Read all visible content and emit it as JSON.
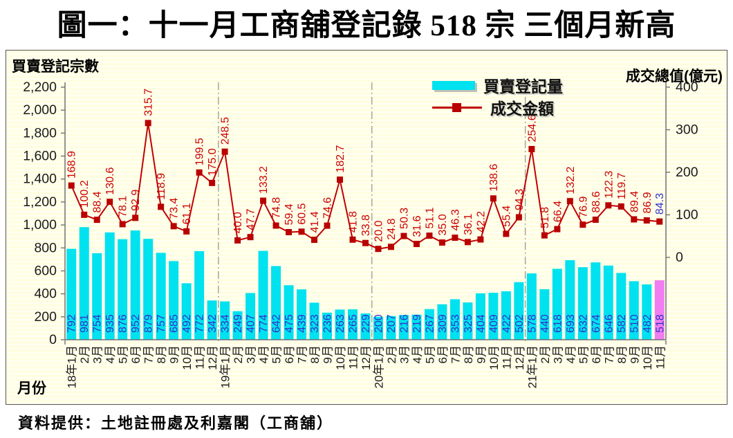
{
  "title": "圖一：十一月工商舖登記錄 518 宗  三個月新高",
  "source": "資料提供：土地註冊處及利嘉閣（工商舖）",
  "chart_data": {
    "type": "bar",
    "subtype": "combo-bar-line-dual-axis",
    "title": "圖一：十一月工商舖登記錄 518 宗  三個月新高",
    "xlabel": "月份",
    "ylabel_left": "買賣登記宗數",
    "ylabel_right": "成交總值(億元)",
    "legend_position": "top-right-inside",
    "grid": "off",
    "y_left": {
      "min": 0,
      "max": 2200,
      "step": 200,
      "tick_labels": [
        "0",
        "200",
        "400",
        "600",
        "800",
        "1,000",
        "1,200",
        "1,400",
        "1,600",
        "1,800",
        "2,000",
        "2,200"
      ]
    },
    "y_right": {
      "min": 0,
      "max": 400,
      "step": 100,
      "tick_labels": [
        "0",
        "100",
        "200",
        "300",
        "400"
      ]
    },
    "categories": [
      "18年1月",
      "2月",
      "3月",
      "4月",
      "5月",
      "6月",
      "7月",
      "8月",
      "9月",
      "10月",
      "11月",
      "12月",
      "19年1月",
      "2月",
      "3月",
      "4月",
      "5月",
      "6月",
      "7月",
      "8月",
      "9月",
      "10月",
      "11月",
      "12月",
      "20年1月",
      "2月",
      "3月",
      "4月",
      "5月",
      "6月",
      "7月",
      "8月",
      "9月",
      "10月",
      "11月",
      "12月",
      "21年1月",
      "2月",
      "3月",
      "4月",
      "5月",
      "6月",
      "7月",
      "8月",
      "9月",
      "10月",
      "11月"
    ],
    "series": [
      {
        "name": "買賣登記量",
        "type": "bar",
        "axis": "left",
        "values": [
          792,
          981,
          754,
          935,
          876,
          952,
          879,
          757,
          685,
          492,
          772,
          342,
          334,
          249,
          407,
          774,
          642,
          475,
          439,
          323,
          236,
          263,
          265,
          229,
          200,
          207,
          216,
          219,
          267,
          309,
          353,
          325,
          404,
          409,
          422,
          502,
          578,
          440,
          618,
          693,
          632,
          674,
          646,
          582,
          510,
          482,
          518
        ],
        "highlight_index": 46
      },
      {
        "name": "成交金額",
        "type": "line",
        "axis": "right",
        "values": [
          168.9,
          100.2,
          88.4,
          130.6,
          78.1,
          92.9,
          315.7,
          118.9,
          73.4,
          61.1,
          199.5,
          175.0,
          248.5,
          40.0,
          47.7,
          133.2,
          74.8,
          59.4,
          60.5,
          41.4,
          74.6,
          182.7,
          41.8,
          33.8,
          20.0,
          24.8,
          50.3,
          31.6,
          51.1,
          35.0,
          46.3,
          36.1,
          42.2,
          138.6,
          55.4,
          94.3,
          254.6,
          51.8,
          66.4,
          132.2,
          76.9,
          88.6,
          122.3,
          119.7,
          89.4,
          86.9,
          84.3
        ],
        "highlight_label_index": 46
      }
    ],
    "legend": [
      {
        "label": "買賣登記量",
        "swatch": "bar"
      },
      {
        "label": "成交金額",
        "swatch": "line-marker"
      }
    ],
    "year_separators_after_index": [
      11,
      23,
      35
    ],
    "colors": {
      "bar": "#00E2EF",
      "bar_highlight": "#F07EF0",
      "line": "#C00000",
      "marker": "#B80000",
      "bar_label": "#3333CC",
      "line_label": "#CC0000",
      "line_label_highlight": "#3333CC",
      "axis": "#707070",
      "separator": "#A0A098",
      "plot_background": "#FFFEE2",
      "tick_text": "#1a1a1a"
    }
  }
}
